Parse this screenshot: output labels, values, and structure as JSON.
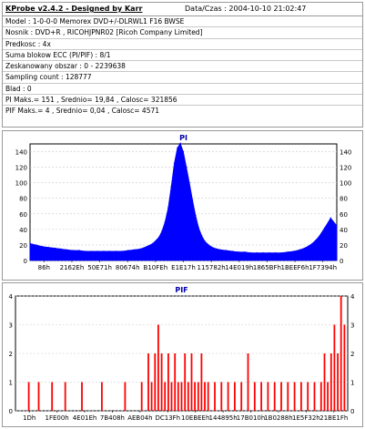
{
  "header": {
    "title": "KProbe v2.4.2 - Designed by Karr",
    "datetime": "Data/Czas : 2004-10-10 21:02:47"
  },
  "info_lines": [
    "Model : 1-0-0-0 Memorex DVD+/-DLRWL1 F16 BWSE",
    "Nosnik : DVD+R , RICOHJPNR02 [Ricoh Company Limited]",
    "Predkosc : 4x",
    "Suma blokow ECC (PI/PIF) : 8/1",
    "Zeskanowany obszar : 0 - 2239638",
    "Sampling count : 128777",
    "Blad : 0",
    "PI Maks.= 151 , Srednio= 19,84 , Calosc= 321856",
    "PIF Maks.= 4 , Srednio= 0,04 , Calosc= 4571"
  ],
  "chart_data": [
    {
      "type": "area",
      "title": "PI",
      "series_color": "#0000ff",
      "ylim": [
        0,
        150
      ],
      "yticks": [
        0,
        20,
        40,
        60,
        80,
        100,
        120,
        140
      ],
      "ytick_labels": [
        "0",
        "20",
        "40",
        "60",
        "80",
        "100",
        "120",
        "140"
      ],
      "xtick_labels": [
        "86h",
        "2162Eh",
        "50E71h",
        "80674h",
        "B10FEh",
        "E1E17h",
        "115782h",
        "14E019h",
        "1865BFh",
        "1BEEF6h",
        "1F7394h"
      ],
      "x": [
        0,
        0.02,
        0.04,
        0.06,
        0.08,
        0.1,
        0.12,
        0.14,
        0.16,
        0.18,
        0.2,
        0.22,
        0.24,
        0.26,
        0.28,
        0.3,
        0.32,
        0.34,
        0.36,
        0.38,
        0.4,
        0.42,
        0.43,
        0.44,
        0.45,
        0.46,
        0.47,
        0.48,
        0.49,
        0.5,
        0.51,
        0.52,
        0.53,
        0.54,
        0.55,
        0.56,
        0.57,
        0.58,
        0.59,
        0.6,
        0.62,
        0.64,
        0.66,
        0.68,
        0.7,
        0.72,
        0.74,
        0.76,
        0.78,
        0.8,
        0.82,
        0.84,
        0.86,
        0.88,
        0.9,
        0.92,
        0.94,
        0.96,
        0.98,
        1.0
      ],
      "values": [
        22,
        20,
        18,
        17,
        16,
        15,
        14,
        13,
        13,
        12,
        12,
        12,
        12,
        12,
        12,
        12,
        13,
        14,
        15,
        18,
        22,
        30,
        38,
        50,
        68,
        95,
        125,
        145,
        151,
        140,
        120,
        100,
        78,
        58,
        42,
        32,
        25,
        21,
        18,
        16,
        14,
        13,
        12,
        11,
        11,
        10,
        10,
        10,
        10,
        10,
        10,
        11,
        12,
        14,
        17,
        22,
        30,
        42,
        55,
        45
      ]
    },
    {
      "type": "bar",
      "title": "PIF",
      "series_color": "#ff0000",
      "ylim": [
        0,
        4
      ],
      "yticks": [
        0,
        1,
        2,
        3,
        4
      ],
      "ytick_labels": [
        "0",
        "1",
        "2",
        "3",
        "4"
      ],
      "xtick_labels": [
        "1Dh",
        "1FE00h",
        "4E01Eh",
        "7B408h",
        "AEB04h",
        "DC13Fh",
        "10EBEEh",
        "144895h",
        "17B010h",
        "1B0288h",
        "1E5F32h",
        "21BE1Fh"
      ],
      "x": [
        0.04,
        0.07,
        0.11,
        0.15,
        0.2,
        0.26,
        0.33,
        0.38,
        0.4,
        0.41,
        0.42,
        0.43,
        0.44,
        0.45,
        0.46,
        0.47,
        0.48,
        0.49,
        0.5,
        0.51,
        0.52,
        0.53,
        0.54,
        0.55,
        0.56,
        0.57,
        0.58,
        0.6,
        0.62,
        0.64,
        0.66,
        0.68,
        0.7,
        0.72,
        0.74,
        0.76,
        0.78,
        0.8,
        0.82,
        0.84,
        0.86,
        0.88,
        0.9,
        0.92,
        0.93,
        0.94,
        0.95,
        0.96,
        0.97,
        0.98,
        0.99
      ],
      "values": [
        1,
        1,
        1,
        1,
        1,
        1,
        1,
        1,
        2,
        1,
        2,
        3,
        2,
        1,
        2,
        1,
        2,
        1,
        1,
        2,
        1,
        2,
        1,
        1,
        2,
        1,
        1,
        1,
        1,
        1,
        1,
        1,
        2,
        1,
        1,
        1,
        1,
        1,
        1,
        1,
        1,
        1,
        1,
        1,
        2,
        1,
        2,
        3,
        2,
        4,
        3
      ]
    }
  ]
}
